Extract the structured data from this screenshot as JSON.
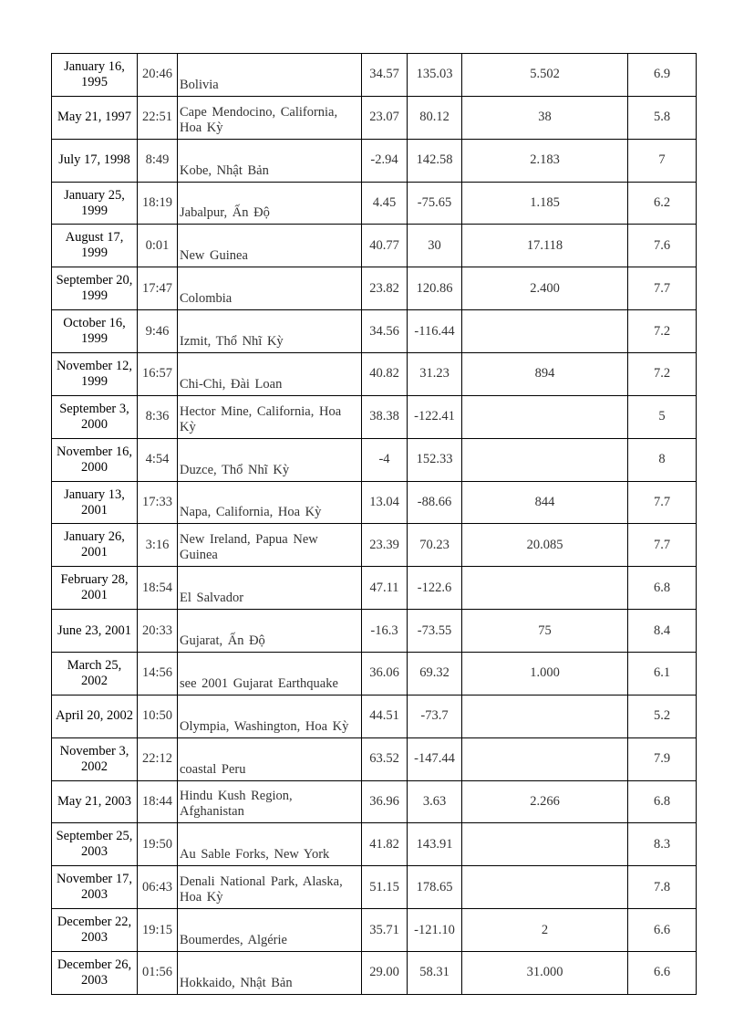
{
  "rows": [
    {
      "date": "January 16, 1995",
      "time": "20:46",
      "location": "Bolivia",
      "lat": "34.57",
      "lon": "135.03",
      "deaths": "5.502",
      "magnitude": "6.9"
    },
    {
      "date": "May 21, 1997",
      "time": "22:51",
      "location": "Cape Mendocino, California, Hoa Kỳ",
      "lat": "23.07",
      "lon": "80.12",
      "deaths": "38",
      "magnitude": "5.8"
    },
    {
      "date": "July 17, 1998",
      "time": "8:49",
      "location": "Kobe, Nhật Bản",
      "lat": "-2.94",
      "lon": "142.58",
      "deaths": "2.183",
      "magnitude": "7"
    },
    {
      "date": "January 25, 1999",
      "time": "18:19",
      "location": "Jabalpur, Ấn Độ",
      "lat": "4.45",
      "lon": "-75.65",
      "deaths": "1.185",
      "magnitude": "6.2"
    },
    {
      "date": "August 17, 1999",
      "time": "0:01",
      "location": "New Guinea",
      "lat": "40.77",
      "lon": "30",
      "deaths": "17.118",
      "magnitude": "7.6"
    },
    {
      "date": "September 20, 1999",
      "time": "17:47",
      "location": "Colombia",
      "lat": "23.82",
      "lon": "120.86",
      "deaths": "2.400",
      "magnitude": "7.7"
    },
    {
      "date": "October 16, 1999",
      "time": "9:46",
      "location": "Izmit, Thổ Nhĩ Kỳ",
      "lat": "34.56",
      "lon": "-116.44",
      "deaths": "",
      "magnitude": "7.2"
    },
    {
      "date": "November 12, 1999",
      "time": "16:57",
      "location": "Chi-Chi, Đài Loan",
      "lat": "40.82",
      "lon": "31.23",
      "deaths": "894",
      "magnitude": "7.2"
    },
    {
      "date": "September 3, 2000",
      "time": "8:36",
      "location": "Hector Mine, California, Hoa Kỳ",
      "lat": "38.38",
      "lon": "-122.41",
      "deaths": "",
      "magnitude": "5"
    },
    {
      "date": "November 16, 2000",
      "time": "4:54",
      "location": "Duzce, Thổ Nhĩ Kỳ",
      "lat": "-4",
      "lon": "152.33",
      "deaths": "",
      "magnitude": "8"
    },
    {
      "date": "January 13, 2001",
      "time": "17:33",
      "location": "Napa, California, Hoa Kỳ",
      "lat": "13.04",
      "lon": "-88.66",
      "deaths": "844",
      "magnitude": "7.7"
    },
    {
      "date": "January 26, 2001",
      "time": "3:16",
      "location": "New Ireland, Papua New Guinea",
      "lat": "23.39",
      "lon": "70.23",
      "deaths": "20.085",
      "magnitude": "7.7"
    },
    {
      "date": "February 28, 2001",
      "time": "18:54",
      "location": "El Salvador",
      "lat": "47.11",
      "lon": "-122.6",
      "deaths": "",
      "magnitude": "6.8"
    },
    {
      "date": "June 23, 2001",
      "time": "20:33",
      "location": "Gujarat, Ấn Độ",
      "lat": "-16.3",
      "lon": "-73.55",
      "deaths": "75",
      "magnitude": "8.4"
    },
    {
      "date": "March 25, 2002",
      "time": "14:56",
      "location": "see 2001 Gujarat Earthquake",
      "lat": "36.06",
      "lon": "69.32",
      "deaths": "1.000",
      "magnitude": "6.1"
    },
    {
      "date": "April 20, 2002",
      "time": "10:50",
      "location": "Olympia, Washington, Hoa Kỳ",
      "lat": "44.51",
      "lon": "-73.7",
      "deaths": "",
      "magnitude": "5.2"
    },
    {
      "date": "November 3, 2002",
      "time": "22:12",
      "location": "coastal Peru",
      "lat": "63.52",
      "lon": "-147.44",
      "deaths": "",
      "magnitude": "7.9"
    },
    {
      "date": "May 21, 2003",
      "time": "18:44",
      "location": "Hindu Kush Region, Afghanistan",
      "lat": "36.96",
      "lon": "3.63",
      "deaths": "2.266",
      "magnitude": "6.8"
    },
    {
      "date": "September 25, 2003",
      "time": "19:50",
      "location": "Au Sable Forks, New York",
      "lat": "41.82",
      "lon": "143.91",
      "deaths": "",
      "magnitude": "8.3"
    },
    {
      "date": "November 17, 2003",
      "time": "06:43",
      "location": "Denali National Park, Alaska, Hoa Kỳ",
      "lat": "51.15",
      "lon": "178.65",
      "deaths": "",
      "magnitude": "7.8"
    },
    {
      "date": "December 22, 2003",
      "time": "19:15",
      "location": "Boumerdes, Algérie",
      "lat": "35.71",
      "lon": "-121.10",
      "deaths": "2",
      "magnitude": "6.6"
    },
    {
      "date": "December 26, 2003",
      "time": "01:56",
      "location": "Hokkaido, Nhật Bản",
      "lat": "29.00",
      "lon": "58.31",
      "deaths": "31.000",
      "magnitude": "6.6"
    }
  ]
}
